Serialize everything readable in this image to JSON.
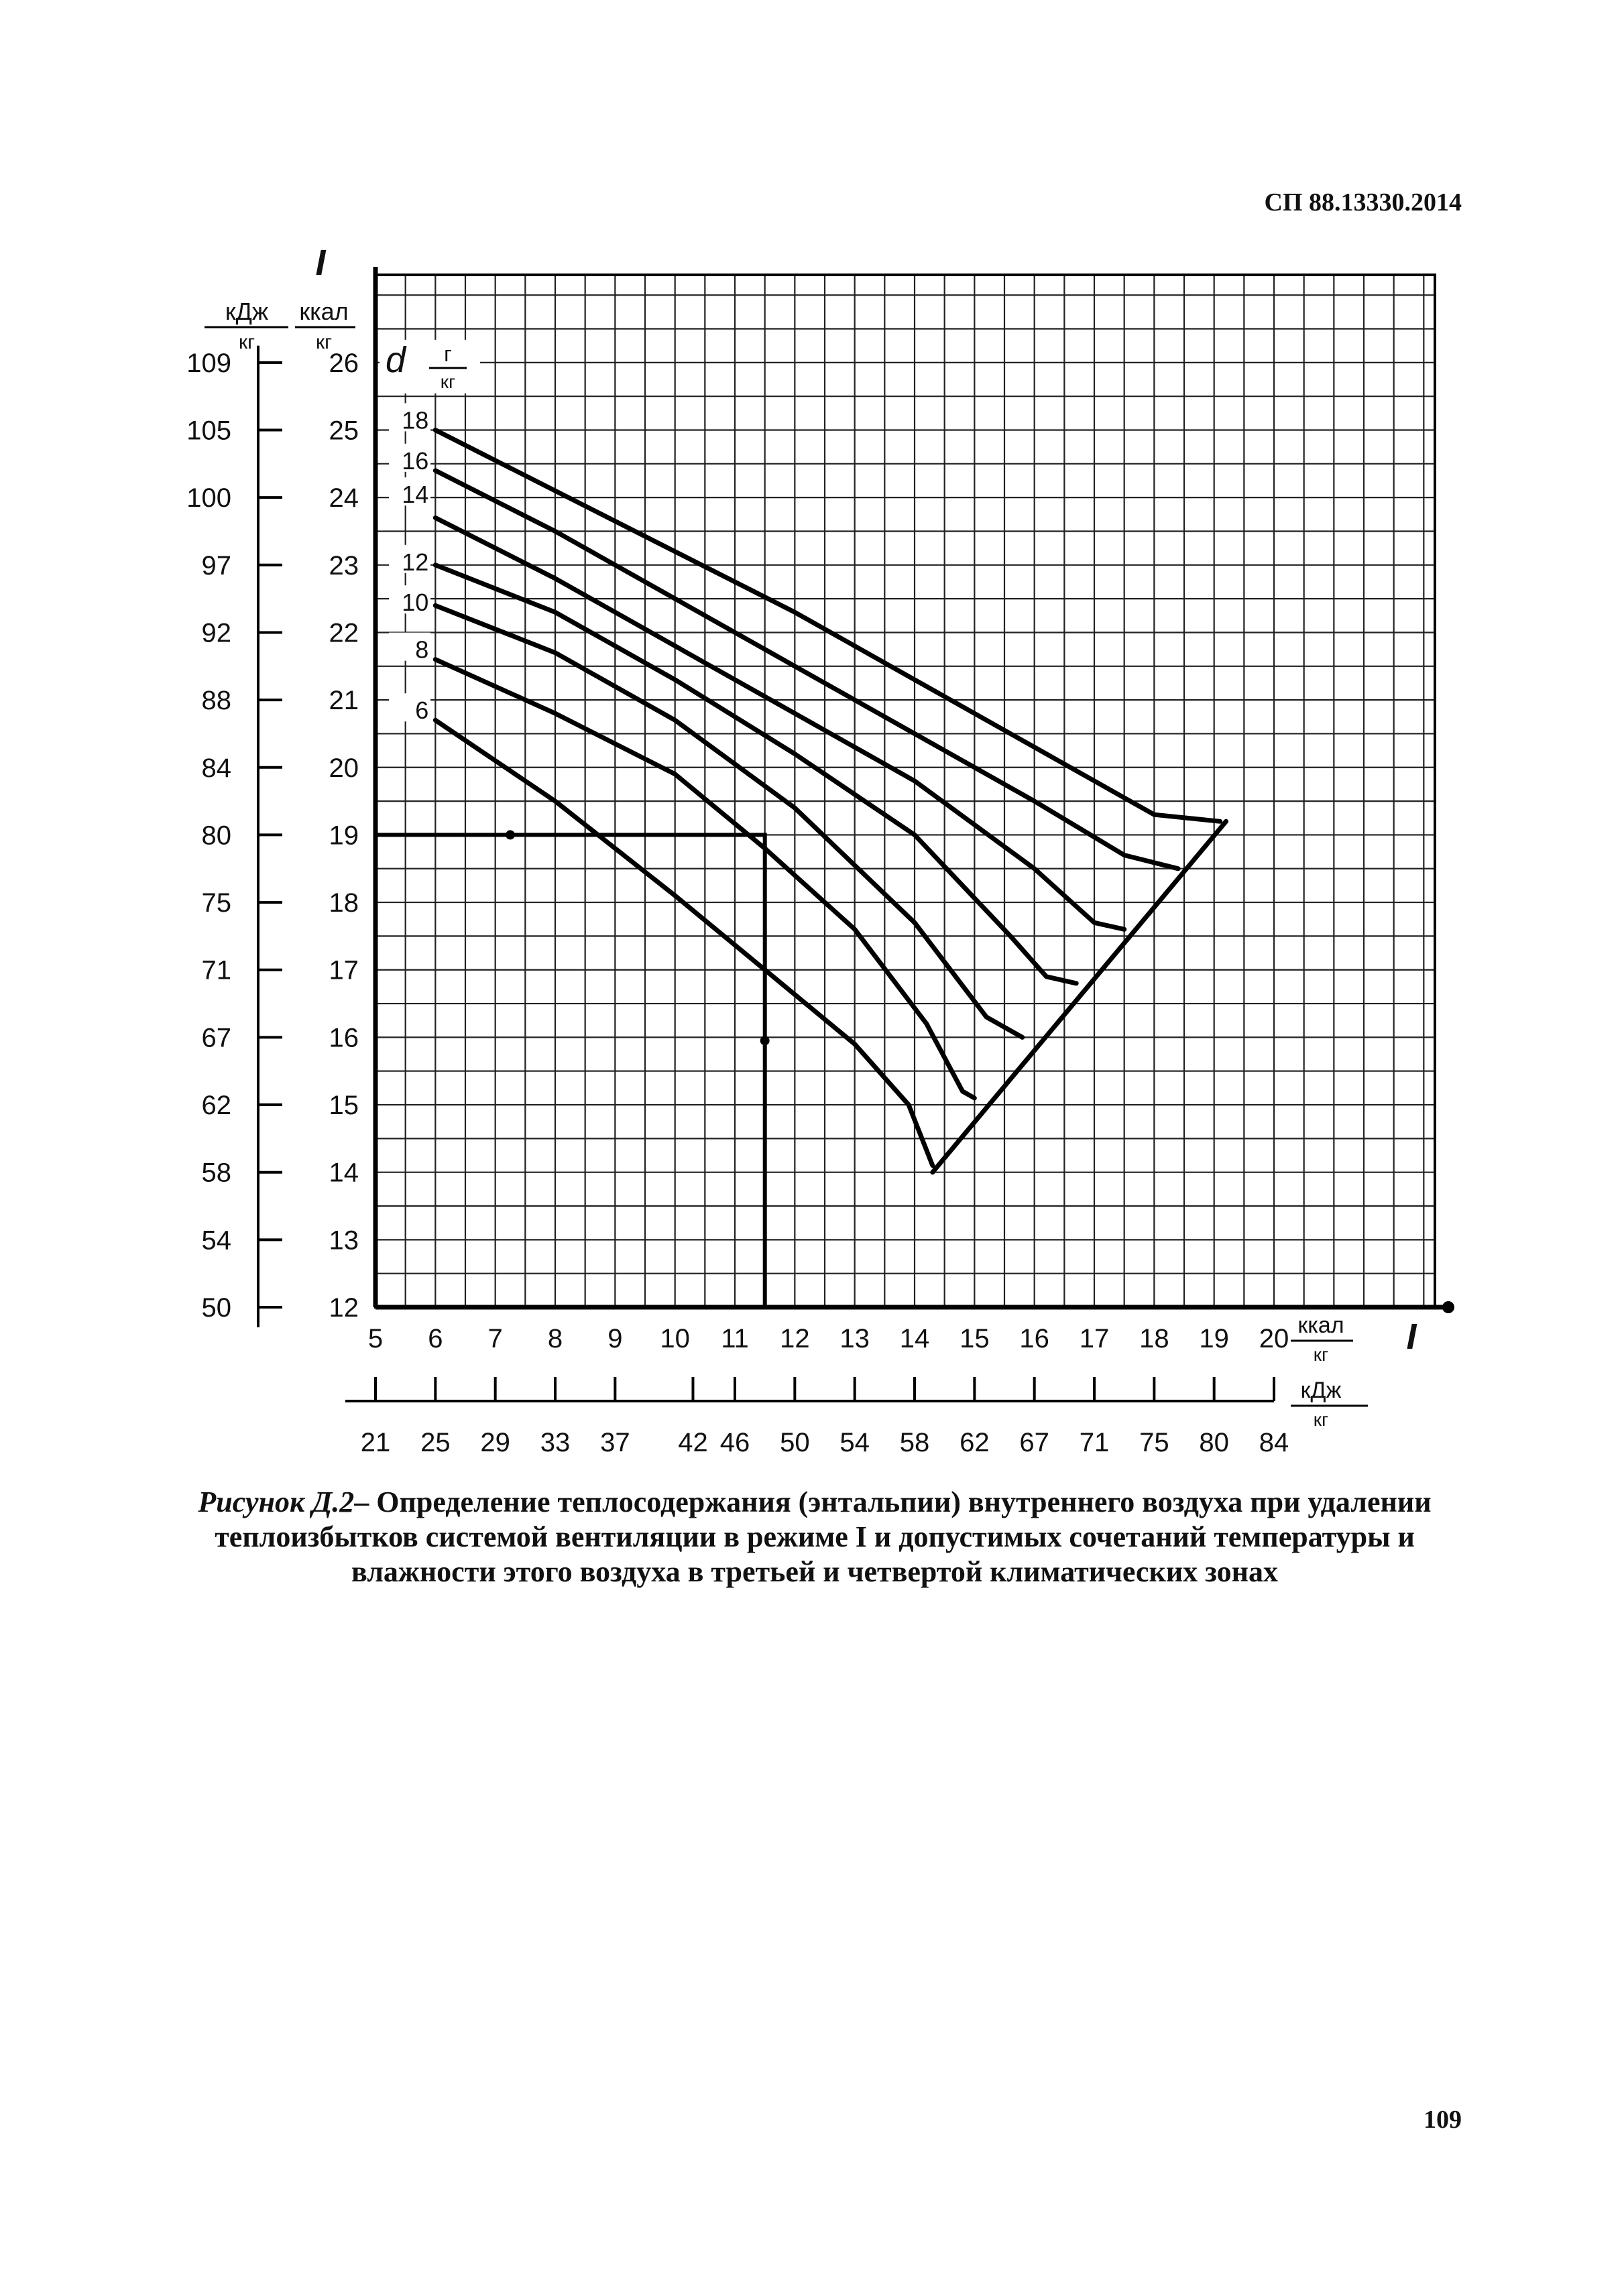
{
  "document": {
    "header_code": "СП 88.13330.2014",
    "caption_lead": "Рисунок Д.2",
    "caption_text": "– Определение теплосодержания (энтальпии) внутреннего воздуха при удалении теплоизбытков системой вентиляции в режиме I и допустимых сочетаний температуры и влажности этого воздуха в третьей и четвертой климатических зонах",
    "page_number": "109"
  },
  "chart_data": {
    "type": "line",
    "title": "",
    "y_axis_symbol": "I",
    "y_unit_kcal": "ккал",
    "y_unit_kj": "кДж",
    "unit_denominator": "кг",
    "x_axis_symbol": "I",
    "x_unit_kcal": "ккал",
    "x_unit_kj": "кДж",
    "d_label": "d",
    "d_unit_num": "г",
    "d_unit_den": "кг",
    "xlim": [
      5,
      21
    ],
    "ylim": [
      12,
      27.5
    ],
    "grid": true,
    "y_ticks_kcal": [
      "12",
      "13",
      "14",
      "15",
      "16",
      "17",
      "18",
      "19",
      "20",
      "21",
      "22",
      "23",
      "24",
      "25",
      "26"
    ],
    "y_ticks_kj": [
      {
        "kcal": 12,
        "label": "50"
      },
      {
        "kcal": 13,
        "label": "54"
      },
      {
        "kcal": 14,
        "label": "58"
      },
      {
        "kcal": 15,
        "label": "62"
      },
      {
        "kcal": 16,
        "label": "67"
      },
      {
        "kcal": 17,
        "label": "71"
      },
      {
        "kcal": 18,
        "label": "75"
      },
      {
        "kcal": 19,
        "label": "80"
      },
      {
        "kcal": 20,
        "label": "84"
      },
      {
        "kcal": 21,
        "label": "88"
      },
      {
        "kcal": 22,
        "label": "92"
      },
      {
        "kcal": 23,
        "label": "97"
      },
      {
        "kcal": 24,
        "label": "100"
      },
      {
        "kcal": 25,
        "label": "105"
      },
      {
        "kcal": 26,
        "label": "109"
      }
    ],
    "x_ticks_kcal": [
      "5",
      "6",
      "7",
      "8",
      "9",
      "10",
      "11",
      "12",
      "13",
      "14",
      "15",
      "16",
      "17",
      "18",
      "19",
      "20"
    ],
    "x_ticks_kj": [
      {
        "kcal": 5,
        "label": "21"
      },
      {
        "kcal": 6,
        "label": "25"
      },
      {
        "kcal": 7,
        "label": "29"
      },
      {
        "kcal": 8,
        "label": "33"
      },
      {
        "kcal": 9,
        "label": "37"
      },
      {
        "kcal": 10.3,
        "label": "42"
      },
      {
        "kcal": 11,
        "label": "46"
      },
      {
        "kcal": 12,
        "label": "50"
      },
      {
        "kcal": 13,
        "label": "54"
      },
      {
        "kcal": 14,
        "label": "58"
      },
      {
        "kcal": 15,
        "label": "62"
      },
      {
        "kcal": 16,
        "label": "67"
      },
      {
        "kcal": 17,
        "label": "71"
      },
      {
        "kcal": 18,
        "label": "75"
      },
      {
        "kcal": 19,
        "label": "80"
      },
      {
        "kcal": 20,
        "label": "84"
      }
    ],
    "series": [
      {
        "name": "18",
        "label_y": 25.1,
        "points": [
          [
            6,
            25.0
          ],
          [
            8,
            24.1
          ],
          [
            10,
            23.2
          ],
          [
            12,
            22.3
          ],
          [
            14,
            21.3
          ],
          [
            16,
            20.3
          ],
          [
            18,
            19.3
          ],
          [
            19.1,
            19.2
          ]
        ]
      },
      {
        "name": "16",
        "label_y": 24.5,
        "points": [
          [
            6,
            24.4
          ],
          [
            8,
            23.5
          ],
          [
            10,
            22.5
          ],
          [
            12,
            21.5
          ],
          [
            14,
            20.5
          ],
          [
            16,
            19.5
          ],
          [
            17.5,
            18.7
          ],
          [
            18.4,
            18.5
          ]
        ]
      },
      {
        "name": "14",
        "label_y": 24.0,
        "points": [
          [
            6,
            23.7
          ],
          [
            8,
            22.8
          ],
          [
            10,
            21.8
          ],
          [
            12,
            20.8
          ],
          [
            14,
            19.8
          ],
          [
            16,
            18.5
          ],
          [
            17.0,
            17.7
          ],
          [
            17.5,
            17.6
          ]
        ]
      },
      {
        "name": "12",
        "label_y": 23.0,
        "points": [
          [
            6,
            23.0
          ],
          [
            8,
            22.3
          ],
          [
            10,
            21.3
          ],
          [
            12,
            20.2
          ],
          [
            14,
            19.0
          ],
          [
            15.6,
            17.5
          ],
          [
            16.2,
            16.9
          ],
          [
            16.7,
            16.8
          ]
        ]
      },
      {
        "name": "10",
        "label_y": 22.4,
        "points": [
          [
            6,
            22.4
          ],
          [
            8,
            21.7
          ],
          [
            10,
            20.7
          ],
          [
            12,
            19.4
          ],
          [
            14,
            17.7
          ],
          [
            15.2,
            16.3
          ],
          [
            15.8,
            16.0
          ]
        ]
      },
      {
        "name": "8",
        "label_y": 21.7,
        "points": [
          [
            6,
            21.6
          ],
          [
            8,
            20.8
          ],
          [
            10,
            19.9
          ],
          [
            11.5,
            18.8
          ],
          [
            13,
            17.6
          ],
          [
            14.2,
            16.2
          ],
          [
            14.8,
            15.2
          ],
          [
            15.0,
            15.1
          ]
        ]
      },
      {
        "name": "6",
        "label_y": 20.8,
        "points": [
          [
            6,
            20.7
          ],
          [
            8,
            19.5
          ],
          [
            10,
            18.1
          ],
          [
            11.5,
            17.0
          ],
          [
            13,
            15.9
          ],
          [
            13.9,
            15.0
          ],
          [
            14.3,
            14.1
          ]
        ]
      }
    ],
    "envelope": [
      [
        14.3,
        14.0
      ],
      [
        19.2,
        19.2
      ]
    ],
    "example": {
      "x": 11.5,
      "y": 19,
      "path": [
        [
          5,
          19
        ],
        [
          11.5,
          19
        ],
        [
          11.5,
          12
        ]
      ]
    }
  }
}
